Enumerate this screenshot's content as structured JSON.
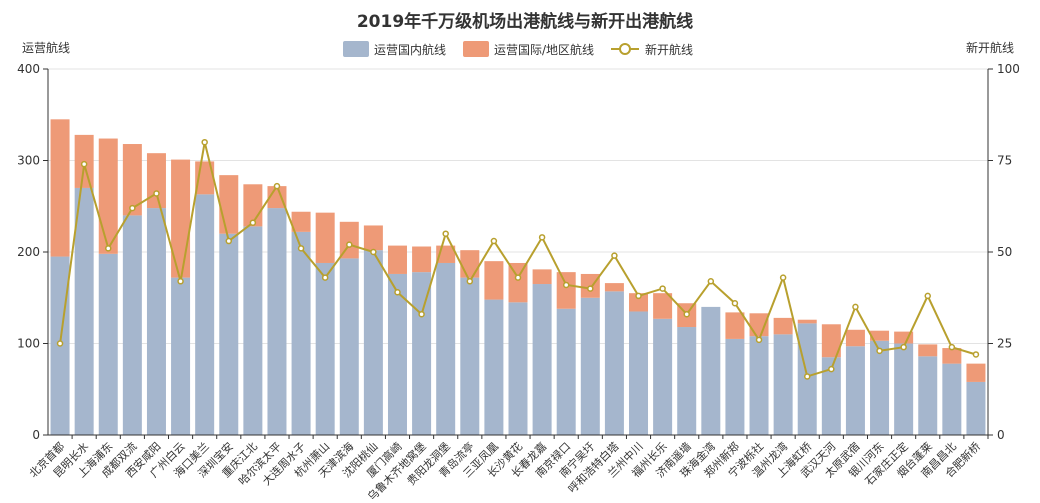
{
  "chart_data": {
    "type": "bar",
    "title": "2019年千万级机场出港航线与新开出港航线",
    "ylabel_left": "运营航线",
    "ylabel_right": "新开航线",
    "ylim_left": [
      0,
      400
    ],
    "ylim_right": [
      0,
      100
    ],
    "yticks_left": [
      "0",
      "100",
      "200",
      "300",
      "400"
    ],
    "yticks_right": [
      "0",
      "25",
      "50",
      "75",
      "100"
    ],
    "grid": "horizontal",
    "legend_position": "top-center",
    "colors": {
      "domestic": "#a5b6cd",
      "international": "#ee9a77",
      "new": "#b8a02e"
    },
    "categories": [
      "北京首都",
      "昆明长水",
      "上海浦东",
      "成都双流",
      "西安咸阳",
      "广州白云",
      "海口美兰",
      "深圳宝安",
      "重庆江北",
      "哈尔滨太平",
      "大连周水子",
      "杭州萧山",
      "天津滨海",
      "沈阳桃仙",
      "厦门高崎",
      "乌鲁木齐地窝堡",
      "贵阳龙洞堡",
      "青岛流亭",
      "三亚凤凰",
      "长沙黄花",
      "长春龙嘉",
      "南京禄口",
      "南宁吴圩",
      "呼和浩特白塔",
      "兰州中川",
      "福州长乐",
      "济南遥墙",
      "珠海金湾",
      "郑州新郑",
      "宁波栎社",
      "温州龙湾",
      "上海虹桥",
      "武汉天河",
      "太原武宿",
      "银川河东",
      "石家庄正定",
      "烟台蓬莱",
      "南昌昌北",
      "合肥新桥"
    ],
    "series": [
      {
        "name": "运营国内航线",
        "type": "bar-stack",
        "values": [
          195,
          270,
          198,
          240,
          248,
          172,
          263,
          220,
          228,
          248,
          222,
          188,
          193,
          202,
          176,
          178,
          188,
          172,
          148,
          145,
          165,
          138,
          150,
          157,
          135,
          127,
          118,
          140,
          105,
          108,
          110,
          122,
          85,
          97,
          103,
          100,
          86,
          78,
          58
        ]
      },
      {
        "name": "运营国际/地区航线",
        "type": "bar-stack",
        "values": [
          150,
          58,
          126,
          78,
          60,
          129,
          36,
          64,
          46,
          24,
          22,
          55,
          40,
          27,
          31,
          28,
          19,
          30,
          42,
          43,
          16,
          40,
          26,
          9,
          20,
          28,
          26,
          0,
          29,
          25,
          18,
          4,
          36,
          18,
          11,
          13,
          13,
          17,
          20
        ]
      },
      {
        "name": "新开航线",
        "type": "line",
        "axis": "right",
        "values": [
          25,
          74,
          51,
          62,
          66,
          42,
          80,
          53,
          58,
          68,
          51,
          43,
          52,
          50,
          39,
          33,
          55,
          42,
          53,
          43,
          54,
          41,
          40,
          49,
          38,
          40,
          33,
          42,
          36,
          26,
          43,
          16,
          18,
          35,
          23,
          24,
          38,
          24,
          22
        ]
      }
    ]
  }
}
